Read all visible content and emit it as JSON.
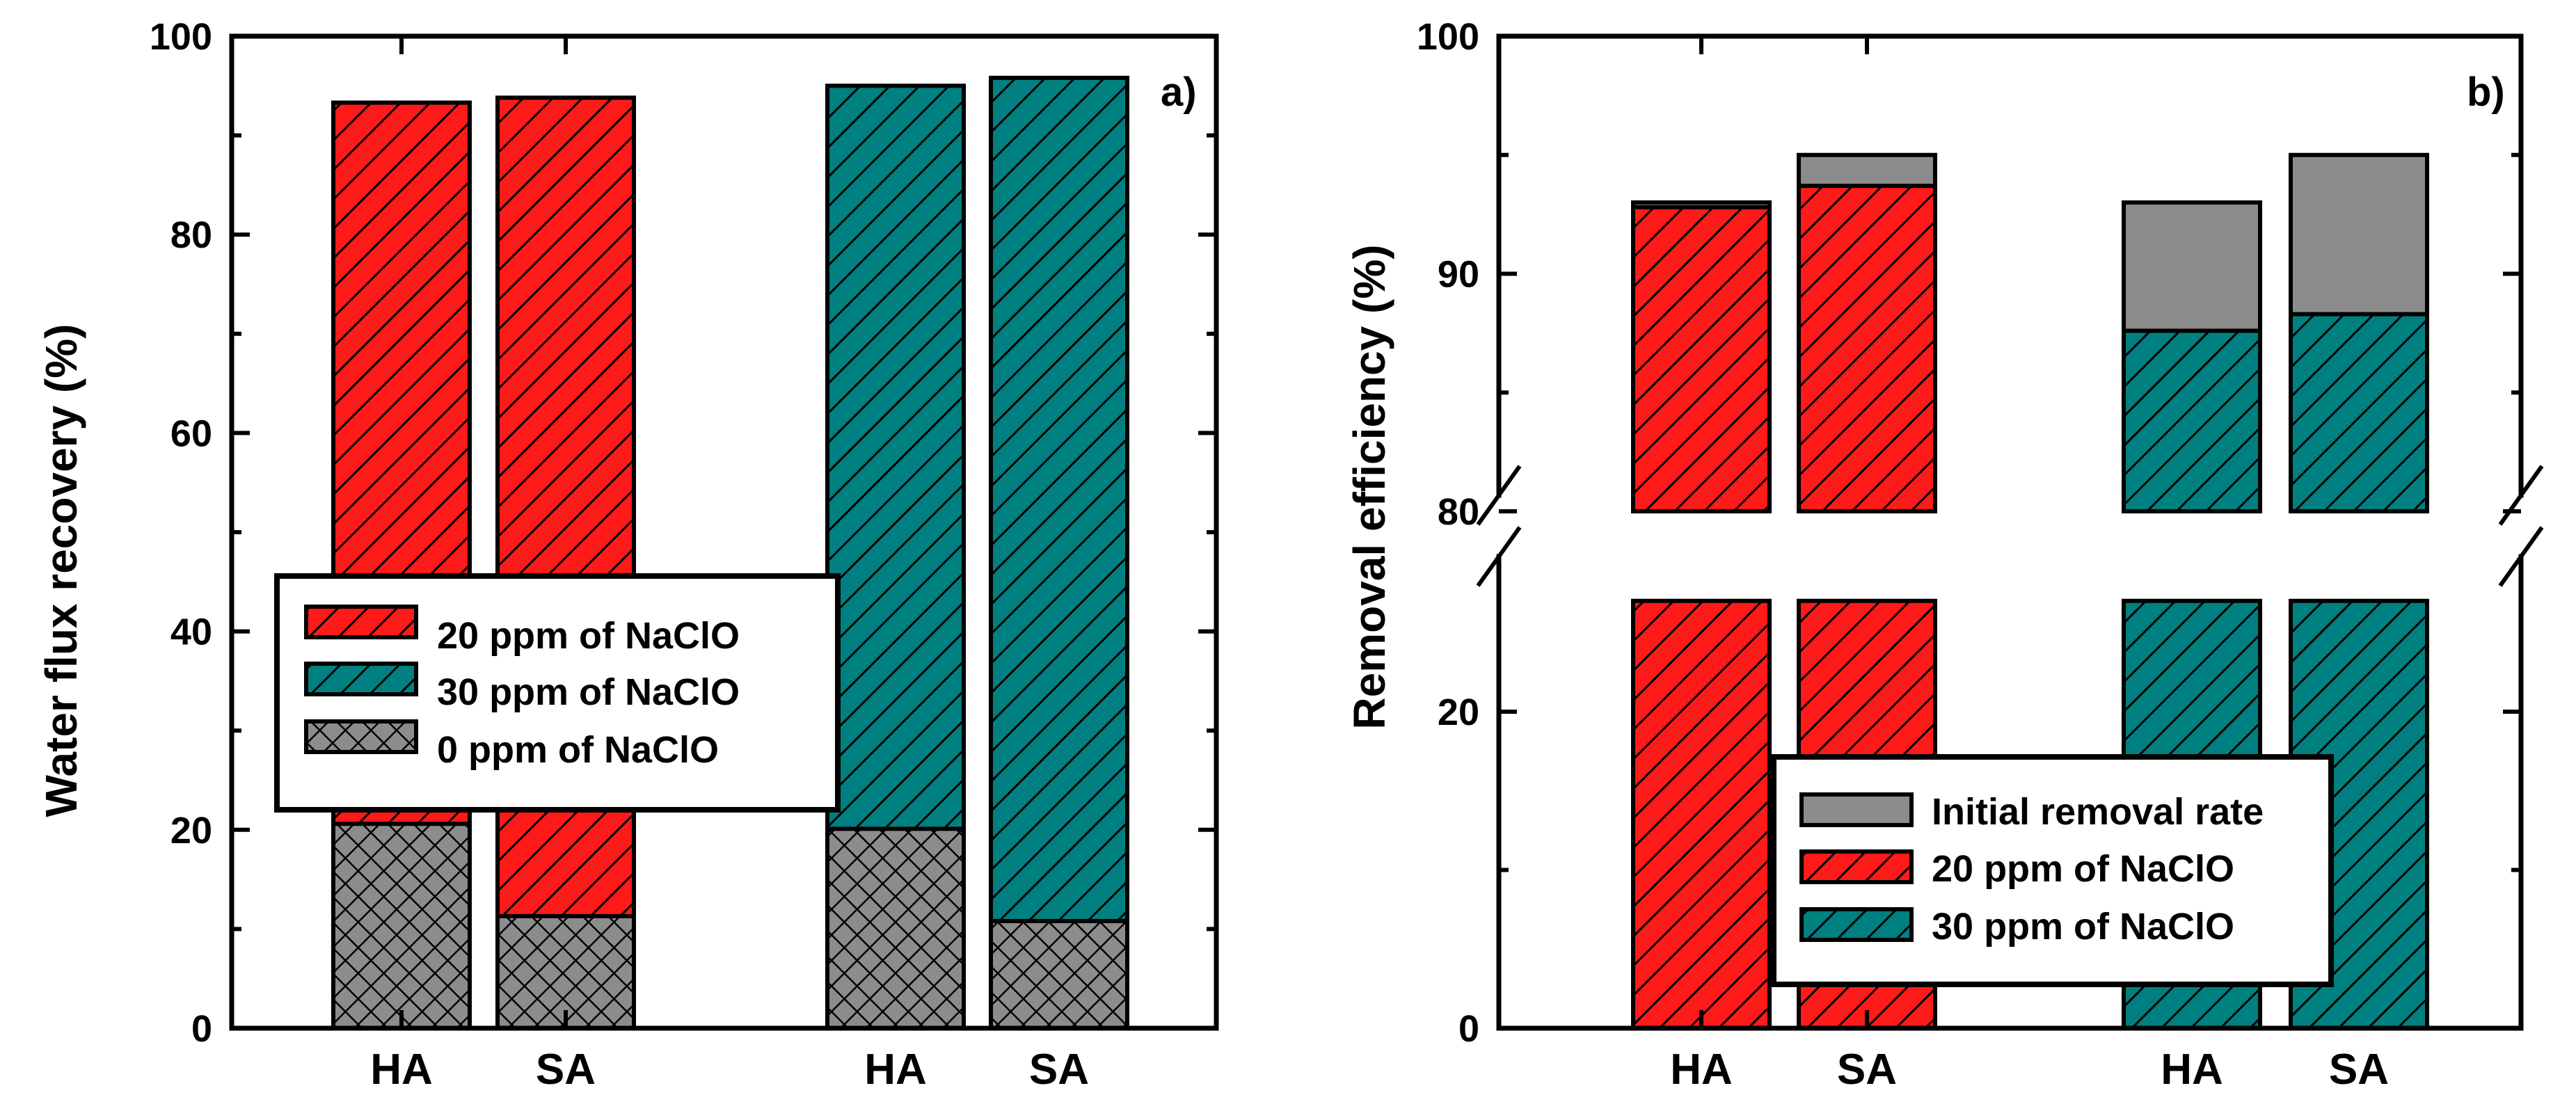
{
  "colors": {
    "red": "#ff1a1a",
    "teal": "#008080",
    "gray": "#8c8c8c",
    "axis": "#000000"
  },
  "chart_data": [
    {
      "type": "bar",
      "panel_label": "a)",
      "ylabel": "Water flux recovery (%)",
      "ylim": [
        0,
        100
      ],
      "yticks": [
        0,
        20,
        40,
        60,
        80,
        100
      ],
      "categories": [
        "HA",
        "SA",
        "HA",
        "SA"
      ],
      "series": [
        {
          "name": "20 ppm of NaClO",
          "color": "red",
          "pattern": "hatch",
          "values": [
            93.3,
            93.8,
            null,
            null
          ]
        },
        {
          "name": "30 ppm of NaClO",
          "color": "teal",
          "pattern": "hatch",
          "values": [
            null,
            null,
            95.0,
            95.8
          ]
        },
        {
          "name": "0 ppm of NaClO",
          "color": "gray",
          "pattern": "crosshatch",
          "values": [
            20.6,
            11.3,
            20.1,
            10.8
          ]
        }
      ],
      "legend_position": "center-left"
    },
    {
      "type": "bar",
      "panel_label": "b)",
      "ylabel": "Removal efficiency (%)",
      "axis_break": [
        27,
        80
      ],
      "yticks": [
        0,
        20,
        80,
        90,
        100
      ],
      "categories": [
        "HA",
        "SA",
        "HA",
        "SA"
      ],
      "series": [
        {
          "name": "Initial removal rate",
          "color": "gray",
          "pattern": "solid",
          "values": [
            93.0,
            95.0,
            93.0,
            95.0
          ]
        },
        {
          "name": "20 ppm of NaClO",
          "color": "red",
          "pattern": "hatch",
          "values": [
            92.8,
            93.7,
            null,
            null
          ]
        },
        {
          "name": "30 ppm of NaClO",
          "color": "teal",
          "pattern": "hatch",
          "values": [
            null,
            null,
            87.6,
            88.3
          ]
        }
      ],
      "legend_position": "lower-right"
    }
  ]
}
